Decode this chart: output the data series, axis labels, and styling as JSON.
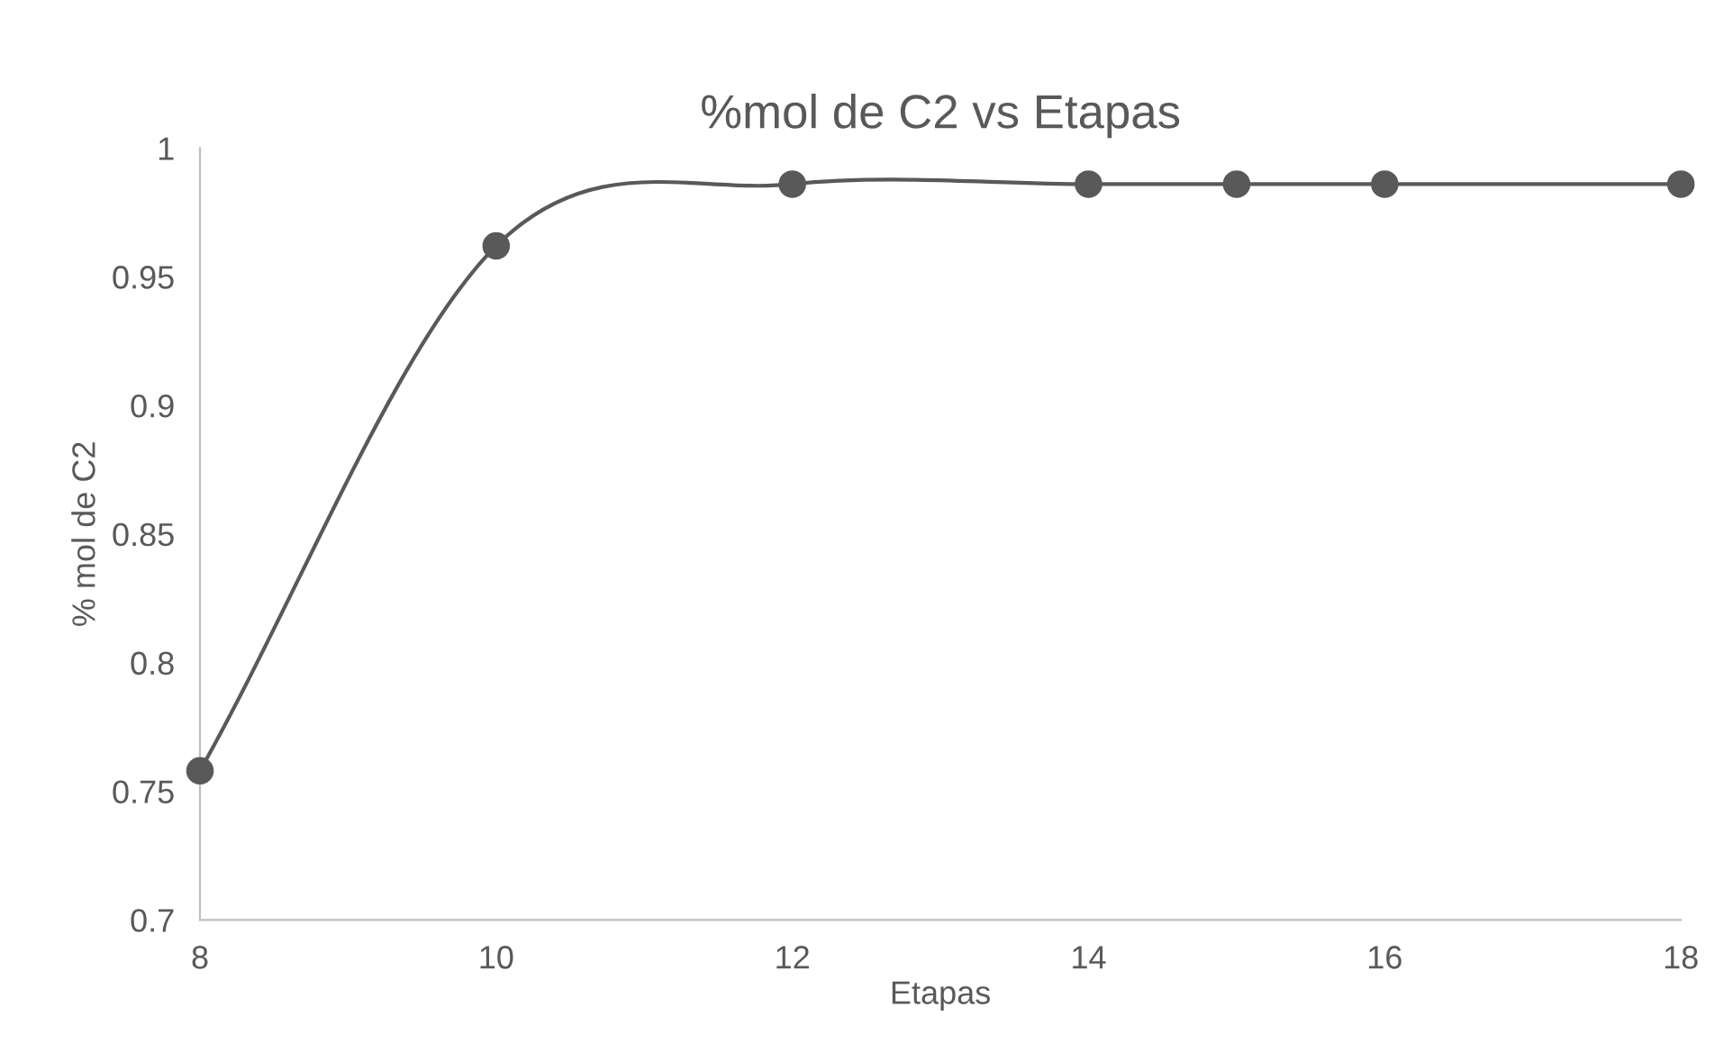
{
  "chart_data": {
    "type": "line",
    "title": "%mol de C2 vs Etapas",
    "xlabel": "Etapas",
    "ylabel": "% mol de C2",
    "x": [
      8,
      10,
      12,
      14,
      15,
      16,
      18
    ],
    "series": [
      {
        "color": "#595959",
        "values": [
          0.758,
          0.962,
          0.986,
          0.986,
          0.986,
          0.986,
          0.986
        ]
      }
    ],
    "xlim": [
      8,
      18
    ],
    "xticks": [
      8,
      10,
      12,
      14,
      16,
      18
    ],
    "ylim": [
      0.7,
      1
    ],
    "yticks": [
      0.7,
      0.75,
      0.8,
      0.85,
      0.9,
      0.95,
      1
    ],
    "marker": "circle",
    "line_style": "solid",
    "grid": false,
    "legend": false
  }
}
